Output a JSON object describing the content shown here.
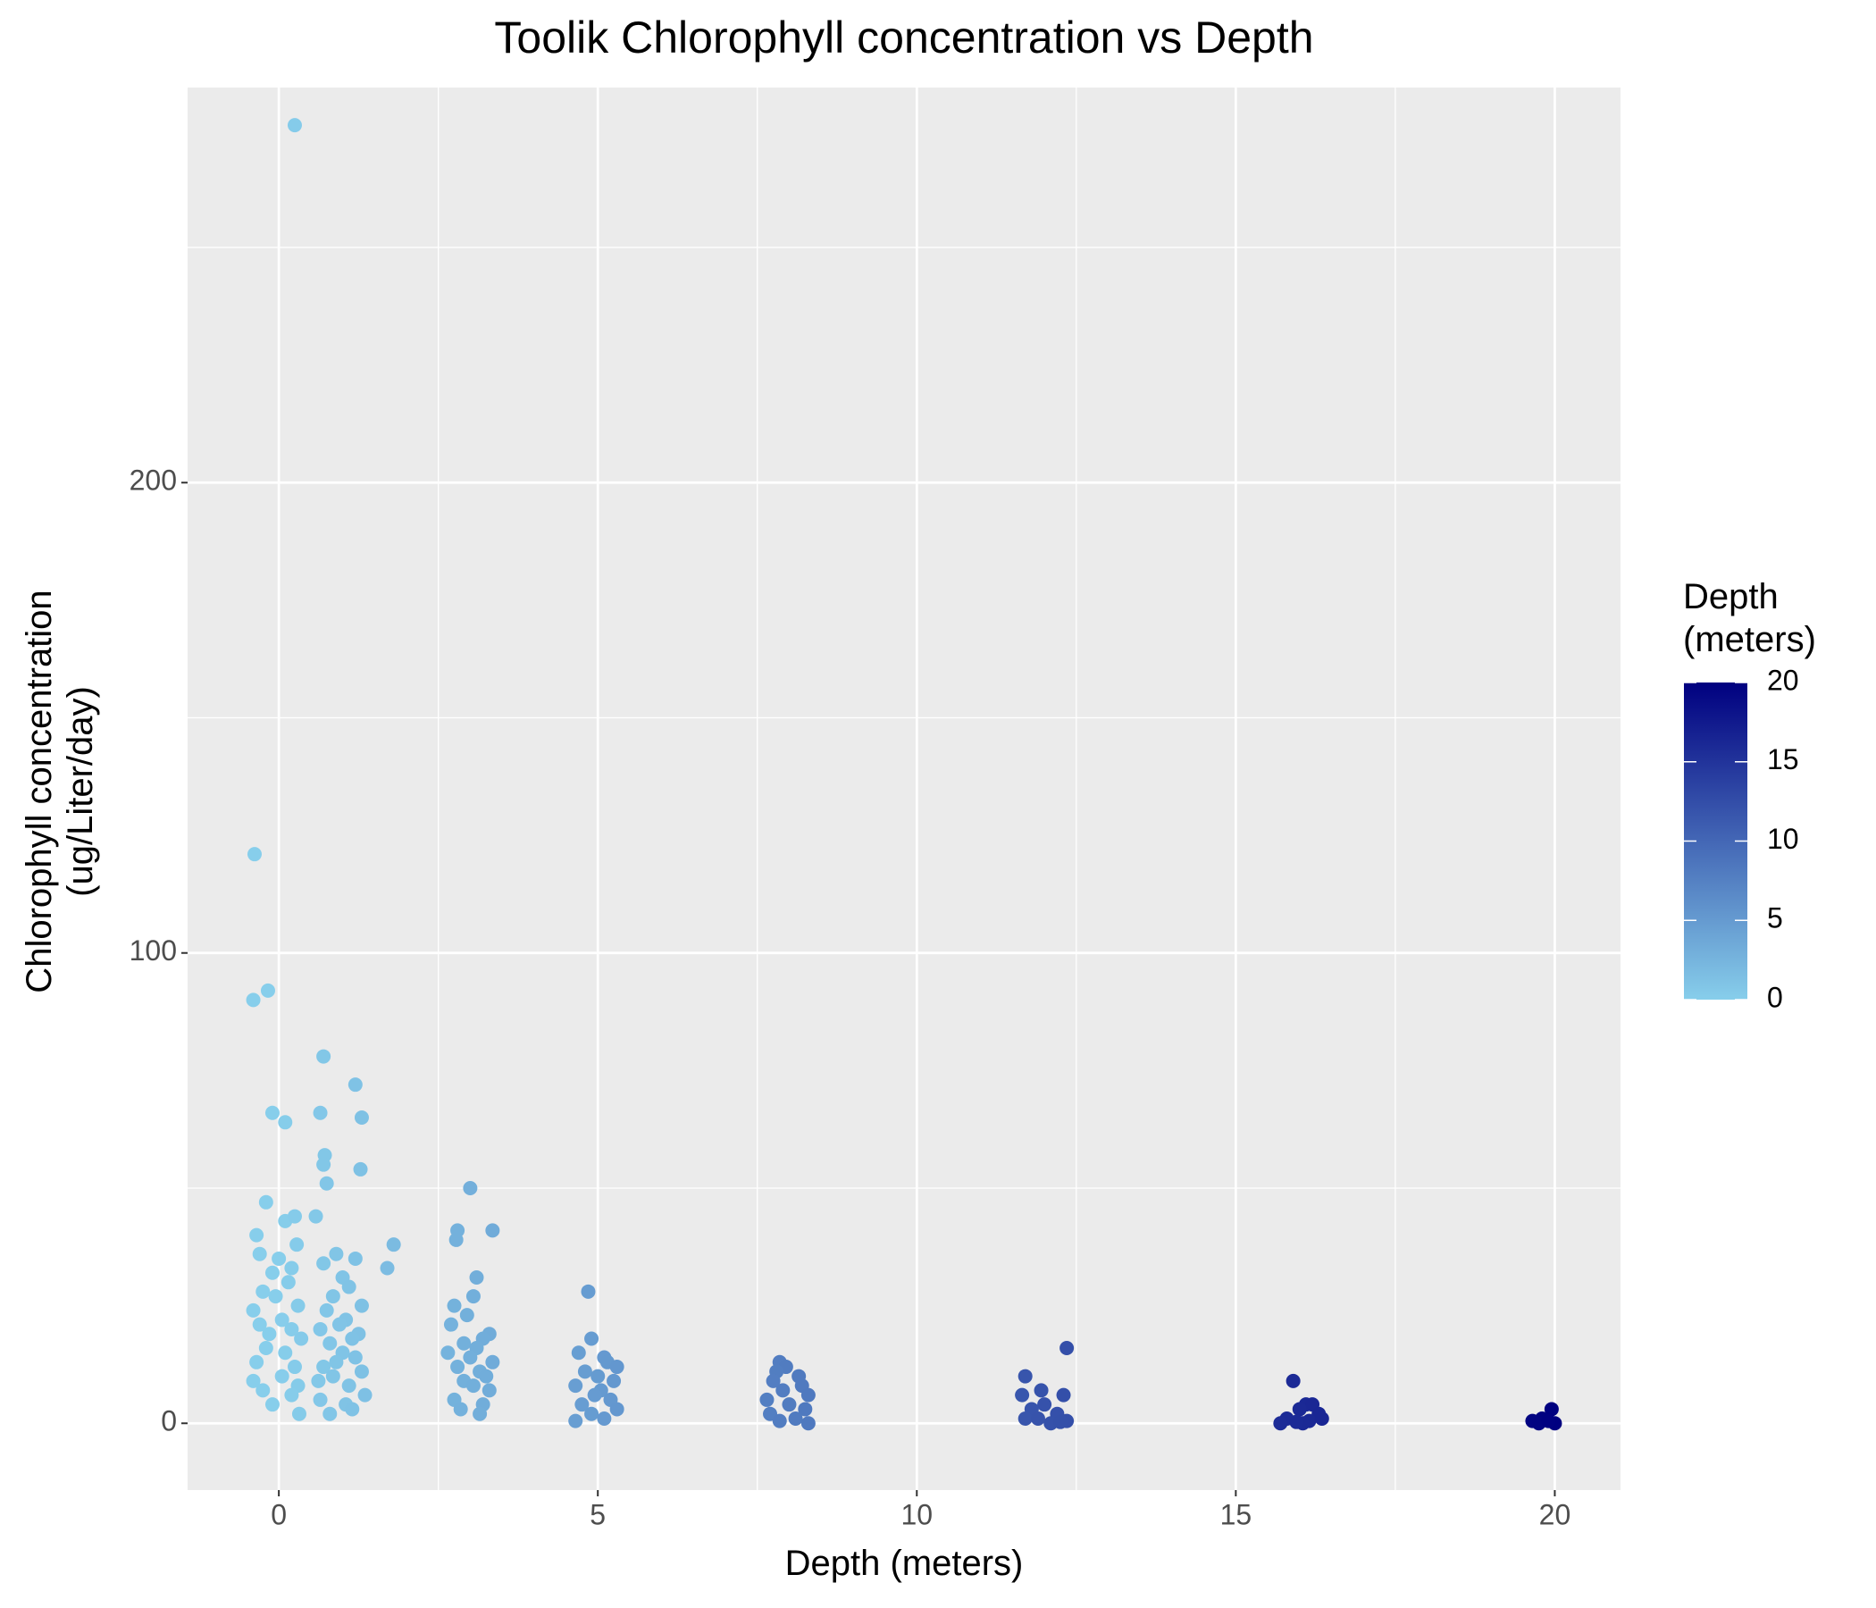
{
  "chart_data": {
    "type": "scatter",
    "title": "Toolik Chlorophyll concentration vs Depth",
    "x_label": "Depth (meters)",
    "y_label": "Chlorophyll concentration\n(ug/Liter/day)",
    "xlim": [
      -1.43,
      21.03
    ],
    "ylim": [
      -14.2,
      284
    ],
    "xticks": [
      0,
      5,
      10,
      15,
      20
    ],
    "yticks": [
      0,
      100,
      200
    ],
    "x_minor_grid": [
      2.5,
      7.5,
      12.5,
      17.5
    ],
    "y_minor_grid": [
      50,
      150,
      250
    ],
    "grid": true,
    "colorbar": {
      "title": "Depth\n(meters)",
      "lim": [
        0,
        20
      ],
      "ticks": [
        0,
        5,
        10,
        15,
        20
      ],
      "low": "#87ceeb",
      "high": "#000080"
    },
    "series": [
      {
        "x": [
          0.25,
          -0.38,
          -0.4,
          -0.17,
          -0.1,
          0.1,
          -0.2,
          0.1,
          0.25,
          -0.35,
          0.28,
          -0.3,
          0.0,
          0.2,
          -0.1,
          0.15,
          -0.25,
          -0.05,
          0.3,
          -0.4,
          0.05,
          -0.3,
          0.2,
          -0.15,
          0.35,
          -0.2,
          0.1,
          -0.35,
          0.25,
          0.05,
          -0.4,
          0.3,
          -0.25,
          0.2,
          -0.1,
          0.32,
          0.7,
          1.2,
          0.65,
          1.3,
          0.72,
          0.7,
          1.28,
          0.75,
          0.58,
          1.8,
          0.9,
          1.2,
          0.7,
          1.7,
          1.0,
          1.1,
          0.85,
          1.3,
          0.75,
          1.05,
          0.95,
          0.65,
          1.25,
          1.15,
          0.8,
          1.0,
          1.2,
          0.9,
          0.7,
          1.3,
          0.85,
          0.62,
          1.1,
          1.35,
          0.65,
          1.05,
          1.15,
          0.8,
          3.0,
          3.35,
          2.8,
          2.78,
          3.1,
          3.05,
          2.75,
          2.95,
          2.7,
          3.3,
          3.2,
          2.9,
          3.1,
          2.65,
          3.0,
          3.35,
          2.8,
          3.15,
          3.25,
          2.9,
          3.05,
          3.3,
          2.75,
          3.2,
          2.85,
          3.15,
          4.85,
          4.9,
          4.7,
          5.1,
          5.15,
          5.3,
          4.8,
          5.0,
          5.25,
          4.65,
          5.05,
          4.95,
          5.2,
          4.75,
          5.3,
          4.9,
          5.1,
          4.65,
          7.85,
          7.95,
          7.8,
          8.15,
          7.75,
          8.2,
          7.9,
          8.3,
          7.65,
          8.0,
          8.25,
          7.7,
          8.1,
          7.85,
          8.3,
          12.35,
          11.7,
          11.95,
          11.65,
          12.3,
          12.0,
          11.8,
          12.2,
          11.7,
          12.35,
          12.1,
          11.9,
          12.25,
          15.9,
          16.1,
          16.2,
          16.0,
          16.3,
          15.8,
          16.15,
          15.7,
          16.05,
          16.35,
          15.95,
          19.95,
          19.8,
          19.65,
          19.75,
          20.0,
          19.9
        ],
        "values": [
          276,
          121,
          90,
          92,
          66,
          64,
          47,
          43,
          44,
          40,
          38,
          36,
          35,
          33,
          32,
          30,
          28,
          27,
          25,
          24,
          22,
          21,
          20,
          19,
          18,
          16,
          15,
          13,
          12,
          10,
          9,
          8,
          7,
          6,
          4,
          2,
          78,
          72,
          66,
          65,
          57,
          55,
          54,
          51,
          44,
          38,
          36,
          35,
          34,
          33,
          31,
          29,
          27,
          25,
          24,
          22,
          21,
          20,
          19,
          18,
          17,
          15,
          14,
          13,
          12,
          11,
          10,
          9,
          8,
          6,
          5,
          4,
          3,
          2,
          50,
          41,
          41,
          39,
          31,
          27,
          25,
          23,
          21,
          19,
          18,
          17,
          16,
          15,
          14,
          13,
          12,
          11,
          10,
          9,
          8,
          7,
          5,
          4,
          3,
          2,
          28,
          18,
          15,
          14,
          13,
          12,
          11,
          10,
          9,
          8,
          7,
          6,
          5,
          4,
          3,
          2,
          1,
          0.5,
          13,
          12,
          11,
          10,
          9,
          8,
          7,
          6,
          5,
          4,
          3,
          2,
          1,
          0.5,
          0,
          16,
          10,
          7,
          6,
          6,
          4,
          3,
          2,
          1,
          0.5,
          0,
          1,
          0.3,
          9,
          4,
          4,
          3,
          2,
          1,
          0.5,
          0,
          0,
          1,
          0.3,
          3,
          1,
          0.5,
          0,
          0,
          0.5
        ]
      }
    ]
  }
}
